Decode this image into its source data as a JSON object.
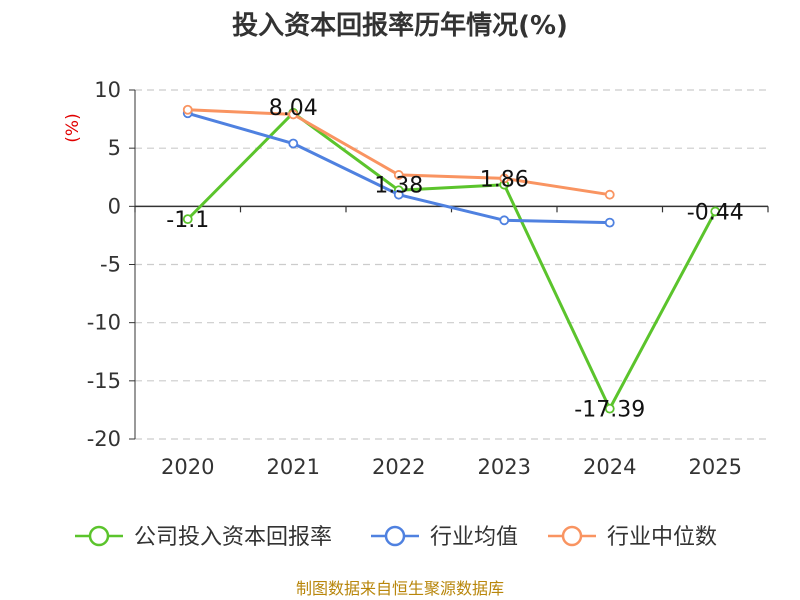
{
  "chart_data": {
    "type": "line",
    "title": "投入资本回报率历年情况(%)",
    "ylabel": "(%)",
    "categories": [
      "2020",
      "2021",
      "2022",
      "2023",
      "2024",
      "2025"
    ],
    "ylim": [
      -20,
      10
    ],
    "yticks": [
      10,
      5,
      0,
      -5,
      -10,
      -15,
      -20
    ],
    "grid": true,
    "legend_position": "bottom",
    "series": [
      {
        "name": "公司投入资本回报率",
        "color": "#5bc42c",
        "values": [
          -1.1,
          8.04,
          1.38,
          1.86,
          -17.39,
          -0.44
        ],
        "data_labels": [
          "-1.1",
          "8.04",
          "1.38",
          "1.86",
          "-17.39",
          "-0.44"
        ]
      },
      {
        "name": "行业均值",
        "color": "#4f81e0",
        "values": [
          8.0,
          5.4,
          1.0,
          -1.2,
          -1.4,
          null
        ]
      },
      {
        "name": "行业中位数",
        "color": "#f99461",
        "values": [
          8.3,
          7.9,
          2.7,
          2.4,
          1.0,
          null
        ]
      }
    ]
  },
  "source": "制图数据来自恒生聚源数据库"
}
